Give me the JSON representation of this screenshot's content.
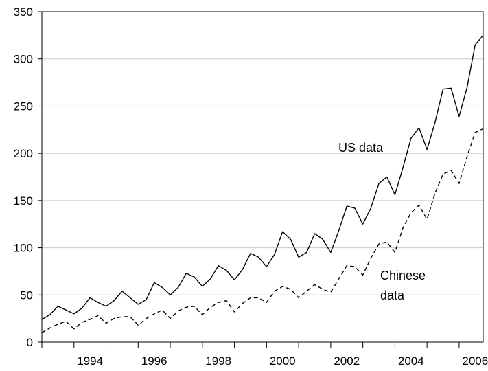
{
  "chart_data": {
    "type": "line",
    "title": "",
    "xlabel": "",
    "ylabel": "",
    "xlim": [
      1993.0,
      2006.75
    ],
    "ylim": [
      0,
      350
    ],
    "y_ticks": [
      0,
      50,
      100,
      150,
      200,
      250,
      300,
      350
    ],
    "x_tick_labels": [
      "1994",
      "1996",
      "1998",
      "2000",
      "2002",
      "2004",
      "2006"
    ],
    "x_label_positions": [
      1994.5,
      1996.5,
      1998.5,
      2000.5,
      2002.5,
      2004.5,
      2006.5
    ],
    "grid": "horizontal",
    "legend": "none",
    "x": [
      1993.0,
      1993.25,
      1993.5,
      1993.75,
      1994.0,
      1994.25,
      1994.5,
      1994.75,
      1995.0,
      1995.25,
      1995.5,
      1995.75,
      1996.0,
      1996.25,
      1996.5,
      1996.75,
      1997.0,
      1997.25,
      1997.5,
      1997.75,
      1998.0,
      1998.25,
      1998.5,
      1998.75,
      1999.0,
      1999.25,
      1999.5,
      1999.75,
      2000.0,
      2000.25,
      2000.5,
      2000.75,
      2001.0,
      2001.25,
      2001.5,
      2001.75,
      2002.0,
      2002.25,
      2002.5,
      2002.75,
      2003.0,
      2003.25,
      2003.5,
      2003.75,
      2004.0,
      2004.25,
      2004.5,
      2004.75,
      2005.0,
      2005.25,
      2005.5,
      2005.75,
      2006.0,
      2006.25,
      2006.5,
      2006.75
    ],
    "series": [
      {
        "name": "US data",
        "style": "solid",
        "color": "#000000",
        "values": [
          24,
          29,
          38,
          34,
          30,
          36,
          47,
          42,
          38,
          44,
          54,
          47,
          40,
          45,
          63,
          58,
          50,
          58,
          73,
          69,
          59,
          67,
          81,
          76,
          66,
          77,
          94,
          90,
          80,
          93,
          117,
          109,
          90,
          95,
          115,
          109,
          95,
          118,
          144,
          142,
          125,
          142,
          168,
          175,
          156,
          185,
          216,
          227,
          204,
          233,
          268,
          269,
          239,
          270,
          315,
          325
        ]
      },
      {
        "name": "Chinese data",
        "style": "dashed",
        "color": "#000000",
        "values": [
          10,
          15,
          19,
          22,
          14,
          21,
          24,
          28,
          20,
          25,
          27,
          27,
          18,
          25,
          30,
          34,
          25,
          33,
          37,
          38,
          29,
          37,
          42,
          44,
          32,
          41,
          47,
          47,
          42,
          54,
          59,
          56,
          47,
          54,
          61,
          56,
          53,
          67,
          81,
          80,
          71,
          89,
          104,
          106,
          95,
          121,
          137,
          145,
          130,
          158,
          178,
          182,
          168,
          197,
          222,
          226
        ]
      }
    ],
    "annotations": [
      {
        "id": "us",
        "lines": [
          "US data"
        ]
      },
      {
        "id": "chinese",
        "lines": [
          "Chinese",
          "data"
        ]
      }
    ]
  }
}
